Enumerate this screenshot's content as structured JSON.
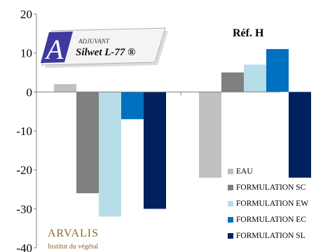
{
  "chart_data": {
    "type": "bar",
    "categories": [
      "",
      "Réf. H"
    ],
    "series": [
      {
        "name": "EAU",
        "color": "#c0c0c0",
        "values": [
          2,
          -22
        ]
      },
      {
        "name": "FORMULATION SC",
        "color": "#808080",
        "values": [
          -26,
          5
        ]
      },
      {
        "name": "FORMULATION EW",
        "color": "#b7dde8",
        "values": [
          -32,
          7
        ]
      },
      {
        "name": "FORMULATION EC",
        "color": "#0070c0",
        "values": [
          -7,
          11
        ]
      },
      {
        "name": "FORMULATION SL",
        "color": "#002060",
        "values": [
          -30,
          -22
        ]
      }
    ],
    "yticks": [
      "20",
      "10",
      "0",
      "-10",
      "-20",
      "-30",
      "-40"
    ],
    "ylim": [
      -40,
      20
    ],
    "group_label": "Réf. H",
    "grid": false,
    "legend_position": "bottom-right"
  },
  "logos": {
    "product": {
      "line1": "ADJUVANT",
      "line2": "Silwet L-77 ®",
      "letter": "A"
    },
    "company": {
      "name": "ARVALIS",
      "tagline": "Institut du végétal"
    }
  }
}
